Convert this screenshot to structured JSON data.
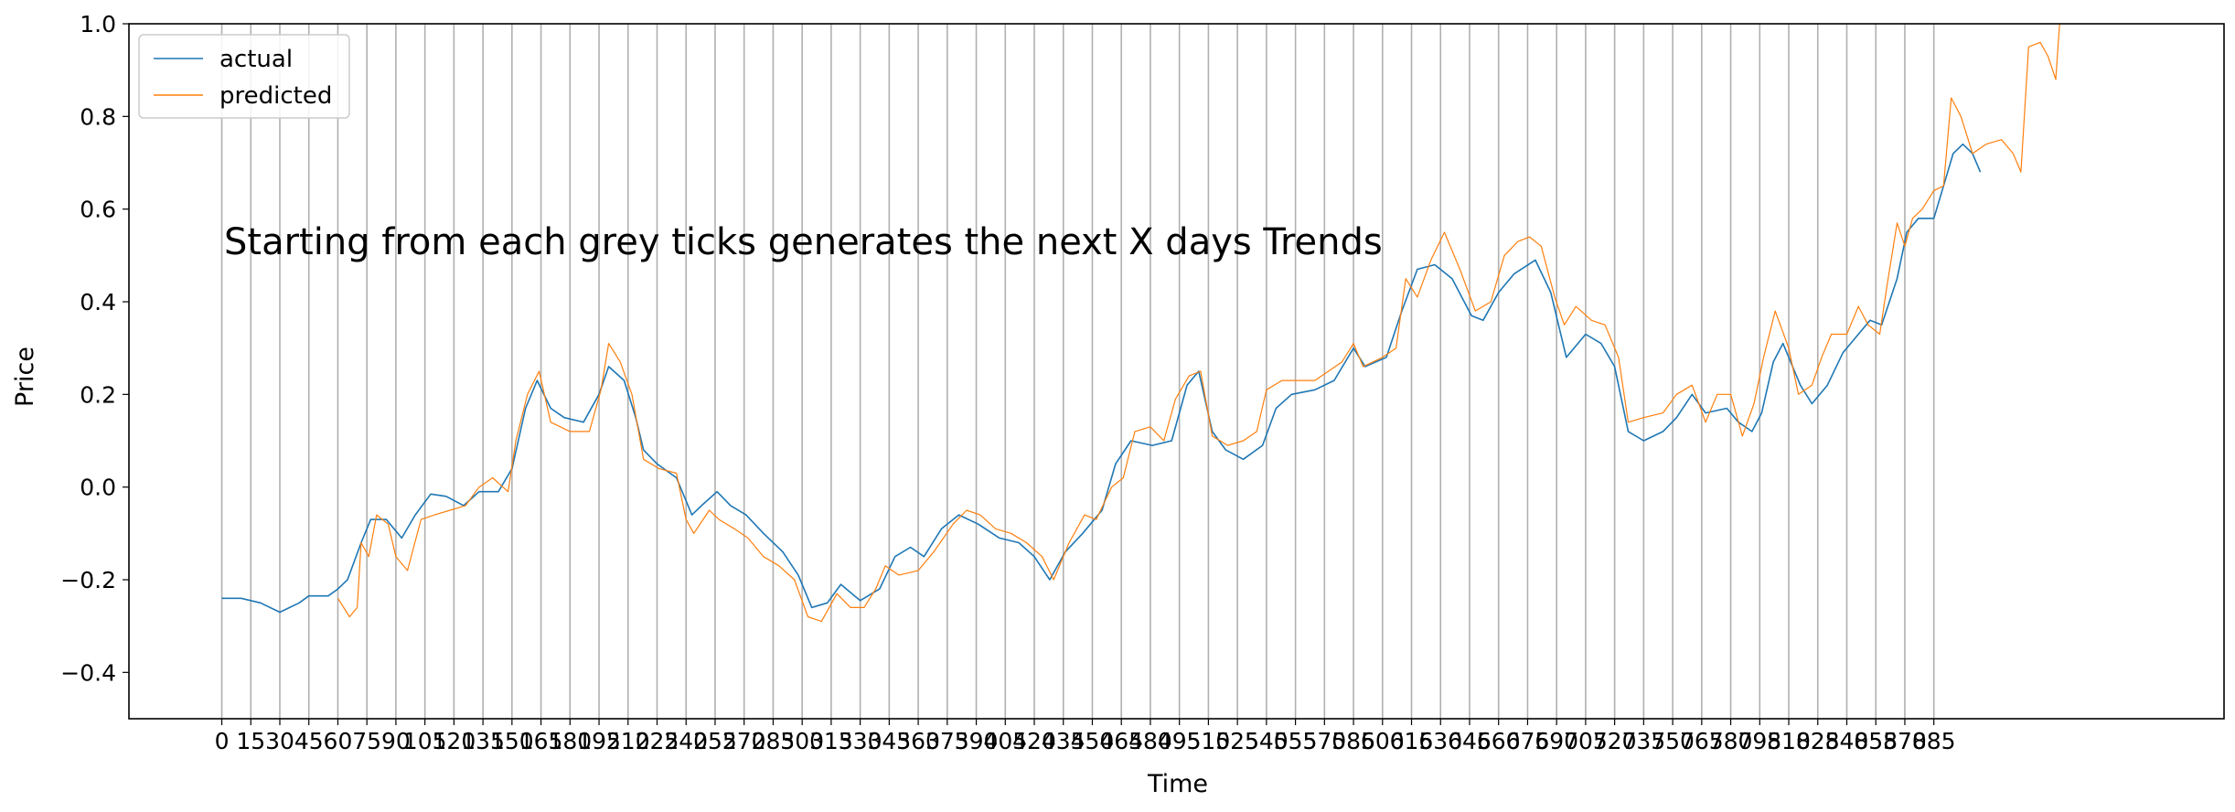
{
  "chart_data": {
    "type": "line",
    "title": "",
    "xlabel": "Time",
    "ylabel": "Price",
    "annotation": "Starting from each grey ticks generates the next X days Trends",
    "xlim": [
      -48,
      1035
    ],
    "ylim": [
      -0.5,
      1.0
    ],
    "grid": "vertical grey lines at every x tick",
    "legend_position": "top-left",
    "x_ticks": [
      0,
      15,
      30,
      45,
      60,
      75,
      90,
      105,
      120,
      135,
      150,
      165,
      180,
      195,
      210,
      225,
      240,
      255,
      270,
      285,
      300,
      315,
      330,
      345,
      360,
      375,
      390,
      405,
      420,
      435,
      450,
      465,
      480,
      495,
      510,
      525,
      540,
      555,
      570,
      585,
      600,
      615,
      630,
      645,
      660,
      675,
      690,
      705,
      720,
      735,
      750,
      765,
      780,
      795,
      810,
      825,
      840,
      855,
      870,
      885
    ],
    "y_ticks": [
      {
        "value": 1.0,
        "label": "1.0"
      },
      {
        "value": 0.8,
        "label": "0.8"
      },
      {
        "value": 0.6,
        "label": "0.6"
      },
      {
        "value": 0.4,
        "label": "0.4"
      },
      {
        "value": 0.2,
        "label": "0.2"
      },
      {
        "value": 0.0,
        "label": "0.0"
      },
      {
        "value": -0.2,
        "label": "−0.2"
      },
      {
        "value": -0.4,
        "label": "−0.4"
      }
    ],
    "colors": {
      "actual": "#1f77b4",
      "predicted": "#ff7f0e",
      "grid": "#b0b0b0"
    },
    "series": [
      {
        "name": "actual",
        "points": [
          [
            0,
            -0.24
          ],
          [
            10,
            -0.24
          ],
          [
            20,
            -0.25
          ],
          [
            30,
            -0.27
          ],
          [
            40,
            -0.25
          ],
          [
            45,
            -0.235
          ],
          [
            55,
            -0.235
          ],
          [
            60,
            -0.22
          ],
          [
            65,
            -0.2
          ],
          [
            72,
            -0.12
          ],
          [
            77,
            -0.07
          ],
          [
            85,
            -0.07
          ],
          [
            93,
            -0.11
          ],
          [
            100,
            -0.06
          ],
          [
            108,
            -0.015
          ],
          [
            116,
            -0.02
          ],
          [
            125,
            -0.04
          ],
          [
            133,
            -0.01
          ],
          [
            143,
            -0.01
          ],
          [
            150,
            0.04
          ],
          [
            157,
            0.17
          ],
          [
            163,
            0.23
          ],
          [
            170,
            0.17
          ],
          [
            177,
            0.15
          ],
          [
            187,
            0.14
          ],
          [
            195,
            0.2
          ],
          [
            200,
            0.26
          ],
          [
            208,
            0.23
          ],
          [
            214,
            0.15
          ],
          [
            218,
            0.08
          ],
          [
            225,
            0.05
          ],
          [
            235,
            0.02
          ],
          [
            243,
            -0.06
          ],
          [
            248,
            -0.04
          ],
          [
            256,
            -0.01
          ],
          [
            263,
            -0.04
          ],
          [
            271,
            -0.06
          ],
          [
            280,
            -0.1
          ],
          [
            290,
            -0.14
          ],
          [
            298,
            -0.19
          ],
          [
            305,
            -0.26
          ],
          [
            313,
            -0.25
          ],
          [
            320,
            -0.21
          ],
          [
            330,
            -0.245
          ],
          [
            340,
            -0.22
          ],
          [
            348,
            -0.15
          ],
          [
            356,
            -0.13
          ],
          [
            363,
            -0.15
          ],
          [
            372,
            -0.09
          ],
          [
            381,
            -0.06
          ],
          [
            391,
            -0.08
          ],
          [
            402,
            -0.11
          ],
          [
            412,
            -0.12
          ],
          [
            420,
            -0.15
          ],
          [
            428,
            -0.2
          ],
          [
            436,
            -0.14
          ],
          [
            445,
            -0.1
          ],
          [
            455,
            -0.05
          ],
          [
            462,
            0.05
          ],
          [
            470,
            0.1
          ],
          [
            481,
            0.09
          ],
          [
            491,
            0.1
          ],
          [
            499,
            0.22
          ],
          [
            505,
            0.25
          ],
          [
            512,
            0.12
          ],
          [
            519,
            0.08
          ],
          [
            528,
            0.06
          ],
          [
            538,
            0.09
          ],
          [
            545,
            0.17
          ],
          [
            553,
            0.2
          ],
          [
            565,
            0.21
          ],
          [
            575,
            0.23
          ],
          [
            585,
            0.3
          ],
          [
            591,
            0.26
          ],
          [
            602,
            0.28
          ],
          [
            610,
            0.38
          ],
          [
            618,
            0.47
          ],
          [
            627,
            0.48
          ],
          [
            636,
            0.45
          ],
          [
            646,
            0.37
          ],
          [
            652,
            0.36
          ],
          [
            660,
            0.42
          ],
          [
            668,
            0.46
          ],
          [
            679,
            0.49
          ],
          [
            687,
            0.42
          ],
          [
            695,
            0.28
          ],
          [
            705,
            0.33
          ],
          [
            713,
            0.31
          ],
          [
            720,
            0.26
          ],
          [
            727,
            0.12
          ],
          [
            735,
            0.1
          ],
          [
            745,
            0.12
          ],
          [
            752,
            0.15
          ],
          [
            760,
            0.2
          ],
          [
            767,
            0.16
          ],
          [
            778,
            0.17
          ],
          [
            784,
            0.14
          ],
          [
            791,
            0.12
          ],
          [
            796,
            0.16
          ],
          [
            802,
            0.27
          ],
          [
            807,
            0.31
          ],
          [
            816,
            0.22
          ],
          [
            822,
            0.18
          ],
          [
            830,
            0.22
          ],
          [
            838,
            0.29
          ],
          [
            846,
            0.33
          ],
          [
            852,
            0.36
          ],
          [
            858,
            0.35
          ],
          [
            866,
            0.45
          ],
          [
            871,
            0.55
          ],
          [
            877,
            0.58
          ],
          [
            885,
            0.58
          ],
          [
            890,
            0.65
          ],
          [
            895,
            0.72
          ],
          [
            900,
            0.74
          ],
          [
            905,
            0.72
          ],
          [
            909,
            0.68
          ]
        ]
      },
      {
        "name": "predicted",
        "points": [
          [
            60,
            -0.24
          ],
          [
            66,
            -0.28
          ],
          [
            70,
            -0.26
          ],
          [
            72,
            -0.12
          ],
          [
            76,
            -0.15
          ],
          [
            80,
            -0.06
          ],
          [
            86,
            -0.08
          ],
          [
            90,
            -0.15
          ],
          [
            96,
            -0.18
          ],
          [
            103,
            -0.07
          ],
          [
            110,
            -0.06
          ],
          [
            118,
            -0.05
          ],
          [
            126,
            -0.04
          ],
          [
            133,
            0.0
          ],
          [
            140,
            0.02
          ],
          [
            148,
            -0.01
          ],
          [
            152,
            0.1
          ],
          [
            158,
            0.2
          ],
          [
            164,
            0.25
          ],
          [
            170,
            0.14
          ],
          [
            180,
            0.12
          ],
          [
            190,
            0.12
          ],
          [
            196,
            0.21
          ],
          [
            200,
            0.31
          ],
          [
            206,
            0.27
          ],
          [
            212,
            0.2
          ],
          [
            218,
            0.06
          ],
          [
            226,
            0.04
          ],
          [
            235,
            0.03
          ],
          [
            240,
            -0.07
          ],
          [
            244,
            -0.1
          ],
          [
            252,
            -0.05
          ],
          [
            257,
            -0.07
          ],
          [
            265,
            -0.09
          ],
          [
            272,
            -0.11
          ],
          [
            280,
            -0.15
          ],
          [
            288,
            -0.17
          ],
          [
            296,
            -0.2
          ],
          [
            303,
            -0.28
          ],
          [
            310,
            -0.29
          ],
          [
            318,
            -0.23
          ],
          [
            325,
            -0.26
          ],
          [
            332,
            -0.26
          ],
          [
            338,
            -0.22
          ],
          [
            343,
            -0.17
          ],
          [
            350,
            -0.19
          ],
          [
            360,
            -0.18
          ],
          [
            368,
            -0.14
          ],
          [
            378,
            -0.08
          ],
          [
            385,
            -0.05
          ],
          [
            392,
            -0.06
          ],
          [
            400,
            -0.09
          ],
          [
            408,
            -0.1
          ],
          [
            416,
            -0.12
          ],
          [
            424,
            -0.15
          ],
          [
            430,
            -0.2
          ],
          [
            438,
            -0.12
          ],
          [
            446,
            -0.06
          ],
          [
            452,
            -0.07
          ],
          [
            460,
            0.0
          ],
          [
            466,
            0.02
          ],
          [
            472,
            0.12
          ],
          [
            480,
            0.13
          ],
          [
            487,
            0.1
          ],
          [
            493,
            0.19
          ],
          [
            500,
            0.24
          ],
          [
            506,
            0.25
          ],
          [
            512,
            0.11
          ],
          [
            520,
            0.09
          ],
          [
            528,
            0.1
          ],
          [
            535,
            0.12
          ],
          [
            540,
            0.21
          ],
          [
            548,
            0.23
          ],
          [
            556,
            0.23
          ],
          [
            565,
            0.23
          ],
          [
            572,
            0.25
          ],
          [
            579,
            0.27
          ],
          [
            585,
            0.31
          ],
          [
            590,
            0.26
          ],
          [
            600,
            0.28
          ],
          [
            607,
            0.3
          ],
          [
            612,
            0.45
          ],
          [
            618,
            0.41
          ],
          [
            625,
            0.49
          ],
          [
            632,
            0.55
          ],
          [
            640,
            0.47
          ],
          [
            648,
            0.38
          ],
          [
            656,
            0.4
          ],
          [
            663,
            0.5
          ],
          [
            670,
            0.53
          ],
          [
            676,
            0.54
          ],
          [
            682,
            0.52
          ],
          [
            689,
            0.41
          ],
          [
            694,
            0.35
          ],
          [
            700,
            0.39
          ],
          [
            708,
            0.36
          ],
          [
            715,
            0.35
          ],
          [
            722,
            0.28
          ],
          [
            727,
            0.14
          ],
          [
            735,
            0.15
          ],
          [
            745,
            0.16
          ],
          [
            752,
            0.2
          ],
          [
            760,
            0.22
          ],
          [
            767,
            0.14
          ],
          [
            773,
            0.2
          ],
          [
            780,
            0.2
          ],
          [
            786,
            0.11
          ],
          [
            792,
            0.18
          ],
          [
            797,
            0.28
          ],
          [
            803,
            0.38
          ],
          [
            810,
            0.3
          ],
          [
            815,
            0.2
          ],
          [
            822,
            0.22
          ],
          [
            827,
            0.28
          ],
          [
            832,
            0.33
          ],
          [
            840,
            0.33
          ],
          [
            846,
            0.39
          ],
          [
            851,
            0.35
          ],
          [
            857,
            0.33
          ],
          [
            861,
            0.44
          ],
          [
            866,
            0.57
          ],
          [
            870,
            0.52
          ],
          [
            874,
            0.58
          ],
          [
            879,
            0.6
          ],
          [
            885,
            0.64
          ],
          [
            890,
            0.65
          ],
          [
            894,
            0.84
          ],
          [
            899,
            0.8
          ],
          [
            905,
            0.72
          ],
          [
            912,
            0.74
          ],
          [
            920,
            0.75
          ],
          [
            926,
            0.72
          ],
          [
            930,
            0.68
          ],
          [
            934,
            0.95
          ],
          [
            940,
            0.96
          ],
          [
            944,
            0.93
          ],
          [
            948,
            0.88
          ],
          [
            950,
            1.0
          ]
        ]
      }
    ]
  }
}
